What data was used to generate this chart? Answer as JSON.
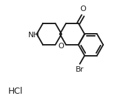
{
  "background_color": "#ffffff",
  "line_color": "#1a1a1a",
  "line_width": 1.4,
  "text_color": "#1a1a1a",
  "hcl_text": "HCl",
  "br_text": "Br",
  "o_ring_text": "O",
  "nh_text": "NH",
  "carbonyl_o_text": "O",
  "fig_width": 1.73,
  "fig_height": 1.48,
  "dpi": 100
}
